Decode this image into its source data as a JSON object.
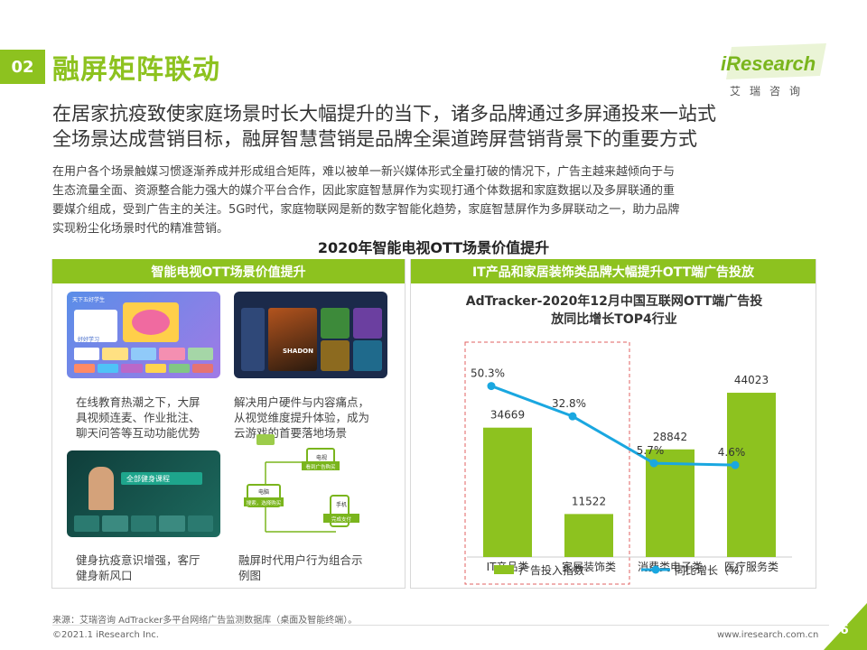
{
  "section": {
    "number": "02",
    "title": "融屏矩阵联动"
  },
  "brand": {
    "logo": "iResearch",
    "logo_sub": "艾瑞咨询"
  },
  "headline": [
    "在居家抗疫致使家庭场景时长大幅提升的当下，诸多品牌通过多屏通投来一站式",
    "全场景达成营销目标，融屏智慧营销是品牌全渠道跨屏营销背景下的重要方式"
  ],
  "body": [
    "在用户各个场景触媒习惯逐渐养成并形成组合矩阵，难以被单一新兴媒体形式全量打破的情况下，广告主越来越倾向于与",
    "生态流量全面、资源整合能力强大的媒介平台合作，因此家庭智慧屏作为实现打通个体数据和家庭数据以及多屏联通的重",
    "要媒介组成，受到广告主的关注。5G时代，家庭物联网是新的数字智能化趋势，家庭智慧屏作为多屏联动之一，助力品牌",
    "实现粉尘化场景时代的精准营销。"
  ],
  "center_title": "2020年智能电视OTT场景价值提升",
  "left_panel": {
    "title": "智能电视OTT场景价值提升",
    "screens": {
      "edu_banner": "天下五好学生",
      "edu_sub": "好好学习",
      "game_logo": "SHADON",
      "fit_banner": "全部健身课程"
    },
    "captions": {
      "edu": [
        "在线教育热潮之下，大屏",
        "具视频连麦、作业批注、",
        "聊天问答等互动功能优势"
      ],
      "game": [
        "解决用户硬件与内容痛点，",
        "从视觉维度提升体验，成为",
        "云游戏的首要落地场景"
      ],
      "fit": [
        "健身抗疫意识增强，客厅",
        "健身新风口"
      ],
      "multi": [
        "融屏时代用户行为组合示",
        "例图"
      ]
    },
    "diagram_labels": [
      "电视",
      "看到广告购买",
      "电脑",
      "搜索，选择购买",
      "手机",
      "完成支付"
    ]
  },
  "right_panel": {
    "title": "IT产品和家居装饰类品牌大幅提升OTT端广告投放"
  },
  "chart_data": {
    "type": "bar",
    "title": [
      "AdTracker-2020年12月中国互联网OTT端广告投",
      "放同比增长TOP4行业"
    ],
    "categories": [
      "IT产品类",
      "家居装饰类",
      "消费类电子类",
      "医疗服务类"
    ],
    "series": [
      {
        "name": "广告投入指数",
        "type": "bar",
        "values": [
          34669,
          11522,
          28842,
          44023
        ],
        "labels": [
          "34669",
          "11522",
          "28842",
          "44023"
        ],
        "color": "#8dc21f"
      },
      {
        "name": "同比增长（%）",
        "type": "line",
        "values": [
          50.3,
          32.8,
          5.7,
          4.6
        ],
        "labels": [
          "50.3%",
          "32.8%",
          "5.7%",
          "4.6%"
        ],
        "color": "#1aa7e0"
      }
    ],
    "bar_ylim": [
      0,
      60000
    ],
    "line_ylim": [
      0,
      60
    ],
    "highlight": {
      "categories": [
        "IT产品类",
        "家居装饰类"
      ],
      "color": "#e06060"
    }
  },
  "footer": {
    "source": "来源：艾瑞咨询 AdTracker多平台网络广告监测数据库（桌面及智能终端）。",
    "copyright": "©2021.1 iResearch Inc.",
    "website": "www.iresearch.com.cn",
    "page": "6"
  }
}
